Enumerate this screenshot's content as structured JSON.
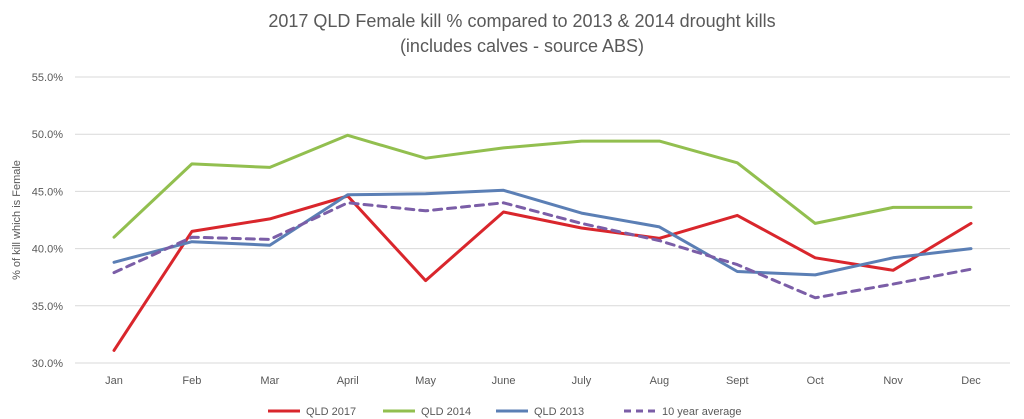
{
  "chart_data": {
    "type": "line",
    "title": "2017 QLD Female kill % compared to 2013 & 2014 drought kills",
    "subtitle": "(includes calves - source ABS)",
    "xlabel": "",
    "ylabel": "% of kill which is Female",
    "categories": [
      "Jan",
      "Feb",
      "Mar",
      "April",
      "May",
      "June",
      "July",
      "Aug",
      "Sept",
      "Oct",
      "Nov",
      "Dec"
    ],
    "ylim": [
      30,
      55
    ],
    "yticks": [
      "30.0%",
      "35.0%",
      "40.0%",
      "45.0%",
      "50.0%",
      "55.0%"
    ],
    "grid": true,
    "legend_position": "bottom",
    "series": [
      {
        "name": "QLD 2017",
        "color": "#d9262c",
        "dash": "solid",
        "values": [
          31.1,
          41.5,
          42.6,
          44.6,
          37.2,
          43.2,
          41.8,
          40.9,
          42.9,
          39.2,
          38.1,
          42.2
        ]
      },
      {
        "name": "QLD 2014",
        "color": "#92bf4f",
        "dash": "solid",
        "values": [
          41.0,
          47.4,
          47.1,
          49.9,
          47.9,
          48.8,
          49.4,
          49.4,
          47.5,
          42.2,
          43.6,
          43.6
        ]
      },
      {
        "name": "QLD 2013",
        "color": "#5b7fb5",
        "dash": "solid",
        "values": [
          38.8,
          40.6,
          40.3,
          44.7,
          44.8,
          45.1,
          43.1,
          41.9,
          38.0,
          37.7,
          39.2,
          40.0
        ]
      },
      {
        "name": "10 year average",
        "color": "#7b5ea7",
        "dash": "dashed",
        "values": [
          37.9,
          41.0,
          40.8,
          44.0,
          43.3,
          44.0,
          42.2,
          40.7,
          38.6,
          35.7,
          36.9,
          38.2
        ]
      }
    ]
  }
}
